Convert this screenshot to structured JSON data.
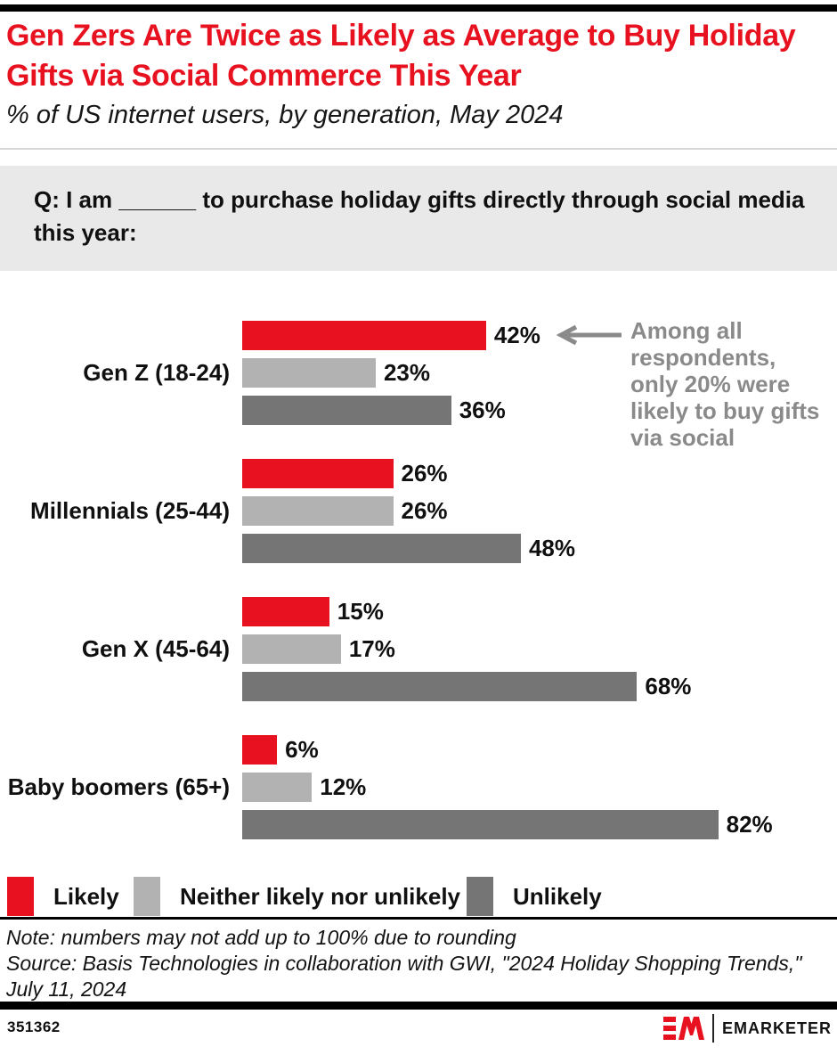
{
  "title": "Gen Zers Are Twice as Likely as Average to Buy Holiday Gifts via Social Commerce This Year",
  "subtitle": "% of US internet users, by generation, May 2024",
  "question": "Q: I am ______ to purchase holiday gifts directly through social media this year:",
  "annotation": "Among all respondents, only 20% were likely to buy gifts via social",
  "chart_data": {
    "type": "bar",
    "orientation": "horizontal",
    "unit": "%",
    "axis": "hidden",
    "xlim": [
      0,
      100
    ],
    "value_labels": true,
    "categories": [
      "Gen Z (18-24)",
      "Millennials (25-44)",
      "Gen X (45-64)",
      "Baby boomers (65+)"
    ],
    "series": [
      {
        "name": "Likely",
        "color": "#e8111f",
        "values": [
          42,
          26,
          15,
          6
        ]
      },
      {
        "name": "Neither likely nor unlikely",
        "color": "#b2b2b2",
        "values": [
          23,
          26,
          17,
          12
        ]
      },
      {
        "name": "Unlikely",
        "color": "#757575",
        "values": [
          36,
          48,
          68,
          82
        ]
      }
    ],
    "legend_position": "bottom"
  },
  "note": "Note: numbers may not add up to 100% due to rounding",
  "source": "Source: Basis Technologies in collaboration with GWI, \"2024 Holiday Shopping Trends,\" July 11, 2024",
  "footer": {
    "chart_id": "351362",
    "brand_monogram": "EM",
    "brand_name": "EMARKETER"
  },
  "colors": {
    "accent_red": "#e8111f",
    "neutral_light": "#b2b2b2",
    "neutral_dark": "#757575",
    "annotation_gray": "#8a8a8a",
    "question_box_bg": "#e9e9e9"
  }
}
